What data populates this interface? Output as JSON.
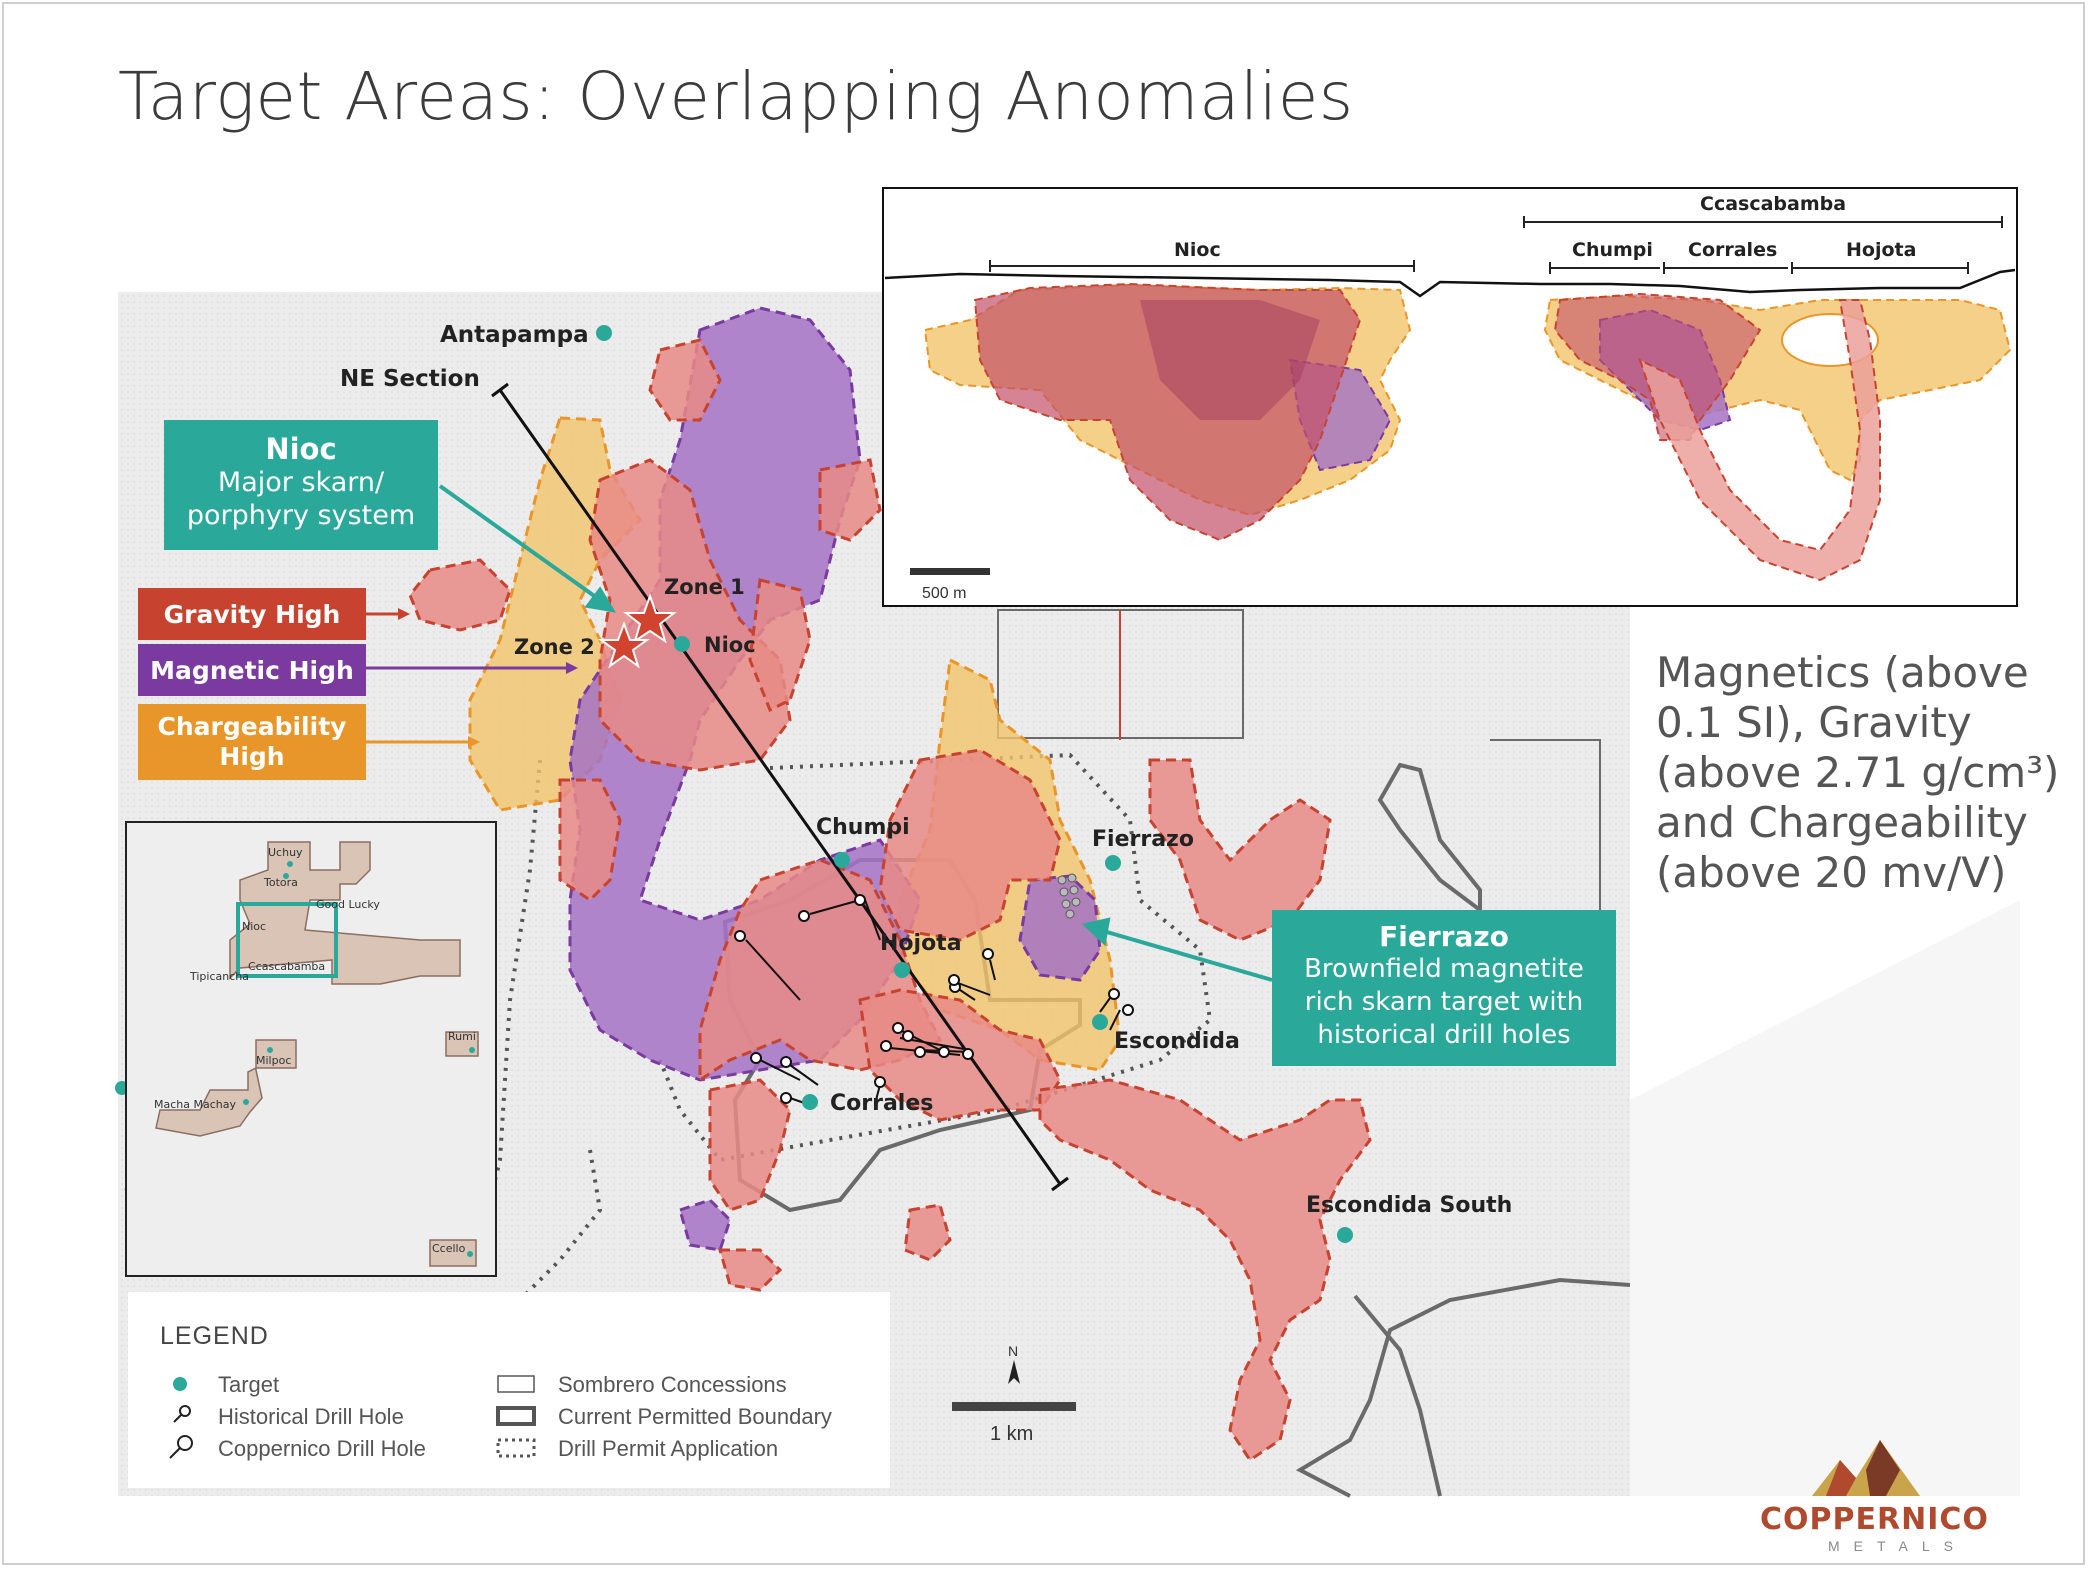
{
  "title": "Target Areas: Overlapping Anomalies",
  "section_view": {
    "group_label": "Ccascabamba",
    "zones": [
      "Nioc",
      "Chumpi",
      "Corrales",
      "Hojota"
    ],
    "scale_label": "500 m"
  },
  "map_labels": {
    "antapampa": "Antapampa",
    "ne_section": "NE Section",
    "zone1": "Zone 1",
    "zone2": "Zone 2",
    "nioc": "Nioc",
    "chumpi": "Chumpi",
    "fierrazo": "Fierrazo",
    "hojota": "Hojota",
    "escondida": "Escondida",
    "corrales": "Corrales",
    "escondida_south": "Escondida South"
  },
  "callouts": {
    "nioc": {
      "title": "Nioc",
      "line1": "Major skarn/",
      "line2": "porphyry system"
    },
    "fierrazo": {
      "title": "Fierrazo",
      "line1": "Brownfield magnetite",
      "line2": "rich skarn target with",
      "line3": "historical drill holes"
    }
  },
  "anomaly_labels": {
    "gravity": "Gravity High",
    "magnetic": "Magnetic High",
    "chargeability_l1": "Chargeability",
    "chargeability_l2": "High"
  },
  "description": {
    "l1": "Magnetics (above",
    "l2": "0.1 SI), Gravity",
    "l3": "(above 2.71 g/cm³)",
    "l4": "and Chargeability",
    "l5": "(above 20 mv/V)"
  },
  "inset_map": {
    "labels": [
      "Uchuy",
      "Totora",
      "Good Lucky",
      "Nioc",
      "Ccascabamba",
      "Tipicancha",
      "Rumi",
      "Milpoc",
      "Macha Machay",
      "Ccello"
    ]
  },
  "legend": {
    "title": "LEGEND",
    "target": "Target",
    "historical": "Historical Drill Hole",
    "coppernico": "Coppernico Drill Hole",
    "sombrero": "Sombrero Concessions",
    "permitted": "Current Permitted Boundary",
    "permit_app": "Drill Permit Application"
  },
  "north_arrow": "N",
  "scale_bar": "1 km",
  "logo": {
    "name": "COPPERNICO",
    "sub": "METALS"
  },
  "colors": {
    "teal": "#2aa89a",
    "gravity": "#c8432f",
    "magnetic": "#7a3aa0",
    "chargeability": "#e8962a",
    "gravity_fill": "#e88a86",
    "magnetic_fill": "#a472c4",
    "chargeability_fill": "#f2c46a"
  }
}
